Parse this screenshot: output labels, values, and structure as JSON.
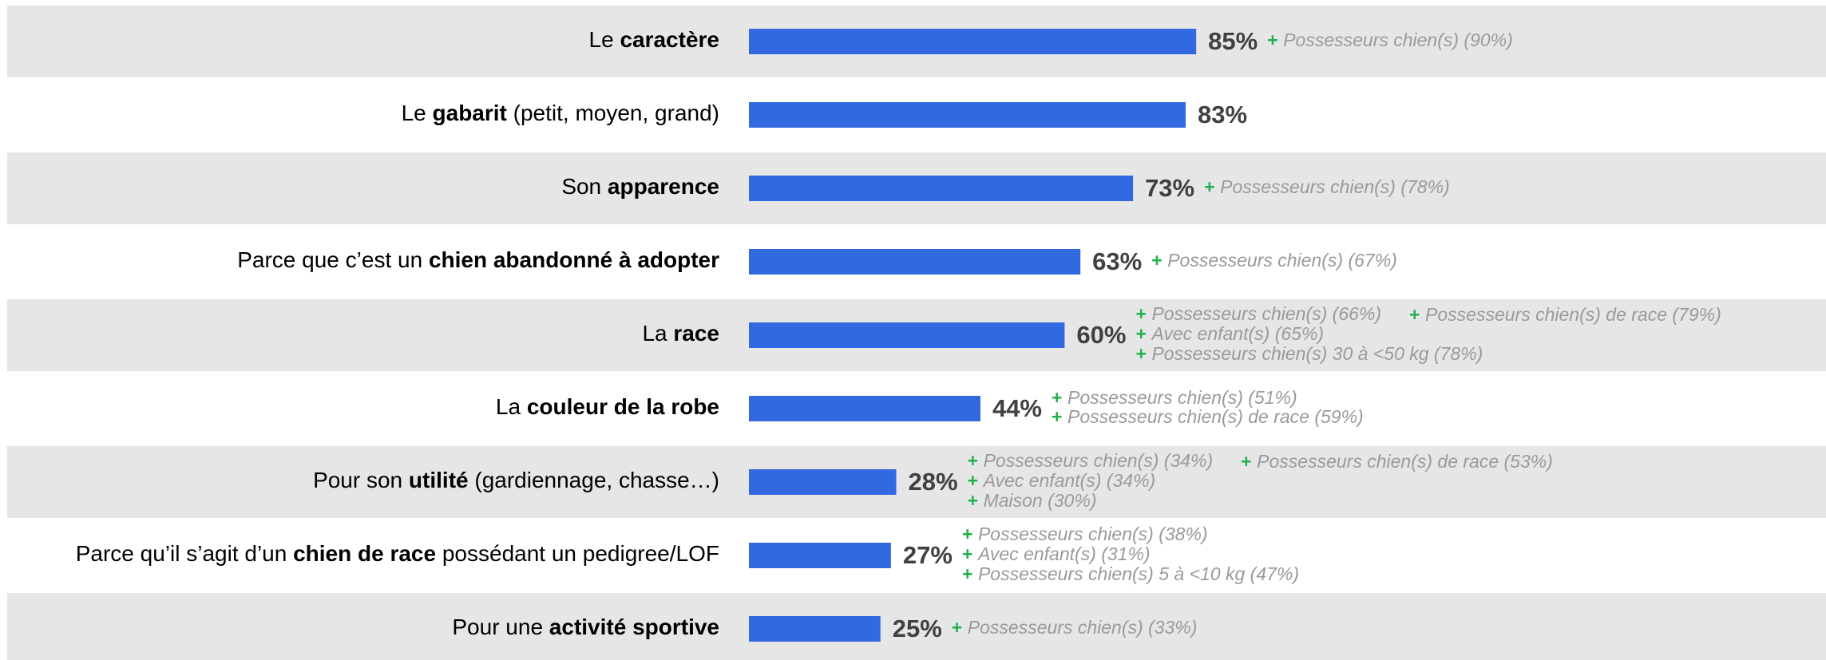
{
  "chart_data": {
    "type": "bar",
    "orientation": "horizontal",
    "categories": [
      [
        {
          "text": "Le "
        },
        {
          "text": "caractère",
          "bold": true
        }
      ],
      [
        {
          "text": "Le "
        },
        {
          "text": "gabarit",
          "bold": true
        },
        {
          "text": " (petit, moyen, grand)"
        }
      ],
      [
        {
          "text": "Son "
        },
        {
          "text": "apparence",
          "bold": true
        }
      ],
      [
        {
          "text": "Parce que c’est un "
        },
        {
          "text": "chien abandonné à adopter",
          "bold": true
        }
      ],
      [
        {
          "text": "La "
        },
        {
          "text": "race",
          "bold": true
        }
      ],
      [
        {
          "text": "La "
        },
        {
          "text": "couleur de la robe",
          "bold": true
        }
      ],
      [
        {
          "text": "Pour son "
        },
        {
          "text": "utilité",
          "bold": true
        },
        {
          "text": " (gardiennage, chasse…)"
        }
      ],
      [
        {
          "text": "Parce qu’il s’agit d’un "
        },
        {
          "text": "chien de race",
          "bold": true
        },
        {
          "text": " possédant un pedigree/LOF"
        }
      ],
      [
        {
          "text": "Pour une "
        },
        {
          "text": "activité sportive",
          "bold": true
        }
      ]
    ],
    "values": [
      85,
      83,
      73,
      63,
      60,
      44,
      28,
      27,
      25
    ],
    "value_labels": [
      "85%",
      "83%",
      "73%",
      "63%",
      "60%",
      "44%",
      "28%",
      "27%",
      "25%"
    ],
    "color": "#3369e0",
    "xlim": [
      0,
      100
    ],
    "note_marker": "+",
    "notes": [
      [
        [
          "Possesseurs chien(s) (90%)"
        ]
      ],
      [],
      [
        [
          "Possesseurs chien(s) (78%)"
        ]
      ],
      [
        [
          "Possesseurs chien(s) (67%)"
        ]
      ],
      [
        [
          "Possesseurs chien(s) (66%)",
          "Avec enfant(s) (65%)",
          "Possesseurs chien(s) 30 à <50 kg (78%)"
        ],
        [
          "Possesseurs chien(s) de race (79%)"
        ]
      ],
      [
        [
          "Possesseurs chien(s) (51%)",
          "Possesseurs chien(s) de race (59%)"
        ]
      ],
      [
        [
          "Possesseurs chien(s) (34%)",
          "Avec enfant(s) (34%)",
          "Maison (30%)"
        ],
        [
          "Possesseurs chien(s) de race (53%)"
        ]
      ],
      [
        [
          "Possesseurs chien(s) (38%)",
          "Avec enfant(s) (31%)",
          "Possesseurs chien(s) 5 à <10 kg (47%)"
        ]
      ],
      [
        [
          "Possesseurs chien(s) (33%)"
        ]
      ]
    ]
  }
}
